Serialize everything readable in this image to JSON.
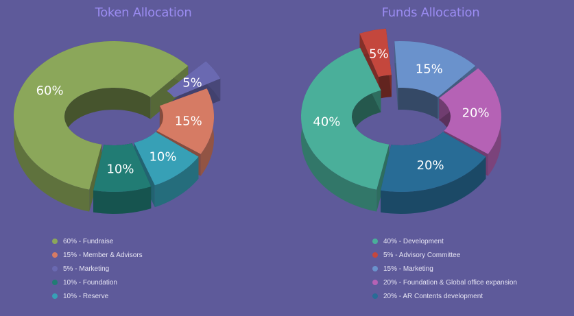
{
  "colors": {
    "background": "#5e5a9a",
    "title": "#9b8cf2",
    "legend_text": "#e6e4f3"
  },
  "chart_data": [
    {
      "type": "pie",
      "title": "Token Allocation",
      "slices": [
        {
          "label": "60%",
          "value": 60,
          "legend": "60% - Fundraise",
          "color": "#8ba75a",
          "exploded": false
        },
        {
          "label": "5%",
          "value": 5,
          "legend": "5% - Marketing",
          "color": "#6a69b1",
          "exploded": true
        },
        {
          "label": "15%",
          "value": 15,
          "legend": "15% - Member & Advisors",
          "color": "#d67b64",
          "exploded": false
        },
        {
          "label": "10%",
          "value": 10,
          "legend": "10% - Reserve",
          "color": "#37a0b6",
          "exploded": false
        },
        {
          "label": "10%",
          "value": 10,
          "legend": "10% - Foundation",
          "color": "#217c74",
          "exploded": false
        }
      ],
      "legend_order": [
        "60% - Fundraise",
        "15% - Member & Advisors",
        "5% - Marketing",
        "10% - Foundation",
        "10% - Reserve"
      ],
      "legend_colors": [
        "#8ba75a",
        "#d67b64",
        "#6a69b1",
        "#217c74",
        "#37a0b6"
      ]
    },
    {
      "type": "pie",
      "title": "Funds Allocation",
      "slices": [
        {
          "label": "40%",
          "value": 40,
          "legend": "40% - Development",
          "color": "#4aaf9a",
          "exploded": false
        },
        {
          "label": "5%",
          "value": 5,
          "legend": "5% - Advisory Committee",
          "color": "#c4473d",
          "exploded": true
        },
        {
          "label": "15%",
          "value": 15,
          "legend": "15% - Marketing",
          "color": "#6a92cc",
          "exploded": false
        },
        {
          "label": "20%",
          "value": 20,
          "legend": "20% - Foundation & Global office expansion",
          "color": "#b562b5",
          "exploded": false
        },
        {
          "label": "20%",
          "value": 20,
          "legend": "20% - AR Contents development",
          "color": "#286c96",
          "exploded": false
        }
      ],
      "legend_order": [
        "40% - Development",
        "5% - Advisory Committee",
        "15% - Marketing",
        "20% - Foundation & Global office expansion",
        "20% - AR Contents development"
      ],
      "legend_colors": [
        "#4aaf9a",
        "#c4473d",
        "#6a92cc",
        "#b562b5",
        "#286c96"
      ]
    }
  ]
}
